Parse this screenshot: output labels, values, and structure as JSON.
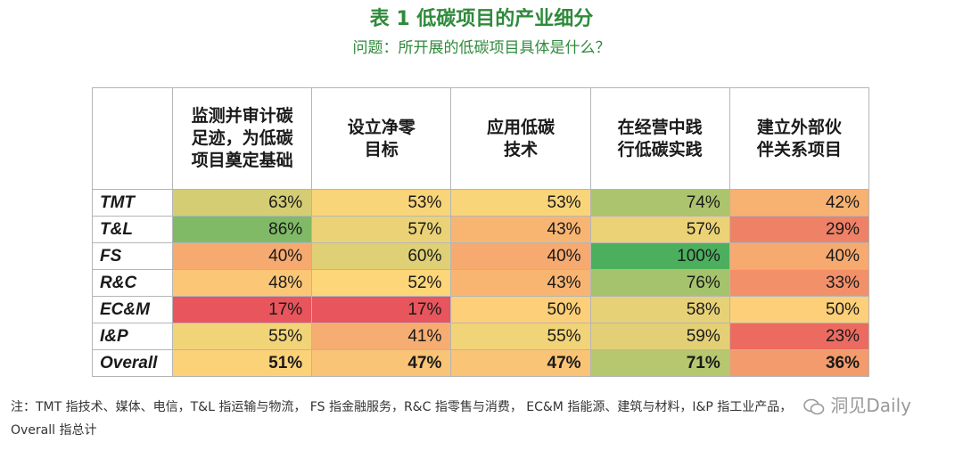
{
  "header": {
    "title": "表 1  低碳项目的产业细分",
    "subtitle": "问题：所开展的低碳项目具体是什么？"
  },
  "chart_data": {
    "type": "table",
    "columns": [
      "监测并审计碳\n足迹，为低碳\n项目奠定基础",
      "设立净零\n目标",
      "应用低碳\n技术",
      "在经营中践\n行低碳实践",
      "建立外部伙\n伴关系项目"
    ],
    "rows": [
      {
        "label": "TMT",
        "values": [
          "63%",
          "53%",
          "53%",
          "74%",
          "42%"
        ],
        "numbers": [
          63,
          53,
          53,
          74,
          42
        ]
      },
      {
        "label": "T&L",
        "values": [
          "86%",
          "57%",
          "43%",
          "57%",
          "29%"
        ],
        "numbers": [
          86,
          57,
          43,
          57,
          29
        ]
      },
      {
        "label": "FS",
        "values": [
          "40%",
          "60%",
          "40%",
          "100%",
          "40%"
        ],
        "numbers": [
          40,
          60,
          40,
          100,
          40
        ]
      },
      {
        "label": "R&C",
        "values": [
          "48%",
          "52%",
          "43%",
          "76%",
          "33%"
        ],
        "numbers": [
          48,
          52,
          43,
          76,
          33
        ]
      },
      {
        "label": "EC&M",
        "values": [
          "17%",
          "17%",
          "50%",
          "58%",
          "50%"
        ],
        "numbers": [
          17,
          17,
          50,
          58,
          50
        ]
      },
      {
        "label": "I&P",
        "values": [
          "55%",
          "41%",
          "55%",
          "59%",
          "23%"
        ],
        "numbers": [
          55,
          41,
          55,
          59,
          23
        ]
      },
      {
        "label": "Overall",
        "values": [
          "51%",
          "47%",
          "47%",
          "71%",
          "36%"
        ],
        "numbers": [
          51,
          47,
          47,
          71,
          36
        ]
      }
    ],
    "color_scale": {
      "low": "#e8555c",
      "mid": "#fdd67a",
      "high": "#4caf5e"
    }
  },
  "notes": {
    "line1": "注：TMT 指技术、媒体、电信，T&L 指运输与物流， FS 指金融服务，R&C 指零售与消费， EC&M 指能源、建筑与材料，I&P 指工业产品，",
    "line2": "Overall 指总计"
  },
  "watermark": {
    "text": "洞见Daily",
    "icon": "wechat-icon"
  }
}
